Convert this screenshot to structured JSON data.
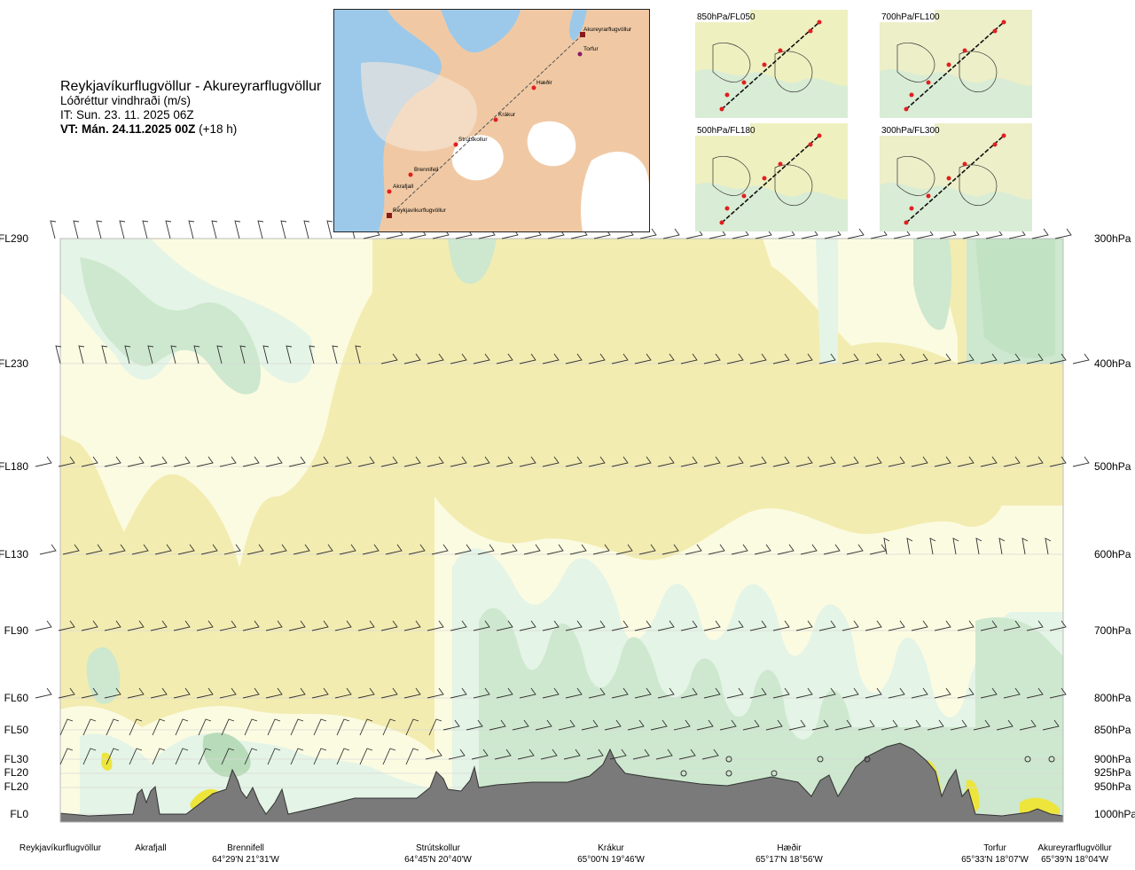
{
  "title": {
    "route": "Reykjavíkurflugvöllur - Akureyrarflugvöllur",
    "variable": "Lóðréttur vindhraði (m/s)",
    "issue_time": "IT: Sun. 23. 11. 2025 06Z",
    "valid_time_bold": "VT: Mán. 24.11.2025 00Z",
    "valid_time_offset": "(+18 h)"
  },
  "route_map": {
    "waypoints": [
      "Akureyrarflugvöllur",
      "Torfur",
      "Hæðir",
      "Krákur",
      "Strútskollur",
      "Brennifell",
      "Akrafjall",
      "Reykjavíkurflugvöllur"
    ]
  },
  "level_maps": [
    {
      "label": "850hPa/FL050"
    },
    {
      "label": "700hPa/FL100"
    },
    {
      "label": "500hPa/FL180"
    },
    {
      "label": "300hPa/FL300"
    }
  ],
  "chart_data": {
    "type": "cross-section",
    "title": "Reykjavíkurflugvöllur - Akureyrarflugvöllur",
    "levels": [
      {
        "fl": "FL290",
        "hpa": "300hPa"
      },
      {
        "fl": "FL230",
        "hpa": "400hPa"
      },
      {
        "fl": "FL180",
        "hpa": "500hPa"
      },
      {
        "fl": "FL130",
        "hpa": "600hPa"
      },
      {
        "fl": "FL90",
        "hpa": "700hPa"
      },
      {
        "fl": "FL60",
        "hpa": "800hPa"
      },
      {
        "fl": "FL50",
        "hpa": "850hPa"
      },
      {
        "fl": "FL30",
        "hpa": "900hPa"
      },
      {
        "fl": "FL20",
        "hpa": "925hPa"
      },
      {
        "fl": "FL20",
        "hpa": "950hPa"
      },
      {
        "fl": "FL0",
        "hpa": "1000hPa"
      }
    ],
    "locations": [
      {
        "name": "Reykjavíkurflugvöllur",
        "coord": ""
      },
      {
        "name": "Akrafjall",
        "coord": ""
      },
      {
        "name": "Brennifell",
        "coord": "64°29'N 21°31'W"
      },
      {
        "name": "Strútskollur",
        "coord": "64°45'N 20°40'W"
      },
      {
        "name": "Krákur",
        "coord": "65°00'N 19°46'W"
      },
      {
        "name": "Hæðir",
        "coord": "65°17'N 18°56'W"
      },
      {
        "name": "Torfur",
        "coord": "65°33'N 18°07'W"
      },
      {
        "name": "Akureyrarflugvöllur",
        "coord": "65°39'N 18°04'W"
      }
    ],
    "colors": {
      "near_zero": "#f3ecb0",
      "weak_up": "#fbfbe2",
      "light_green": "#e4f4e6",
      "green": "#cde8ce",
      "strong": "#b8dcb9",
      "downward": "#ede53c",
      "terrain": "#7a7a7a"
    }
  }
}
